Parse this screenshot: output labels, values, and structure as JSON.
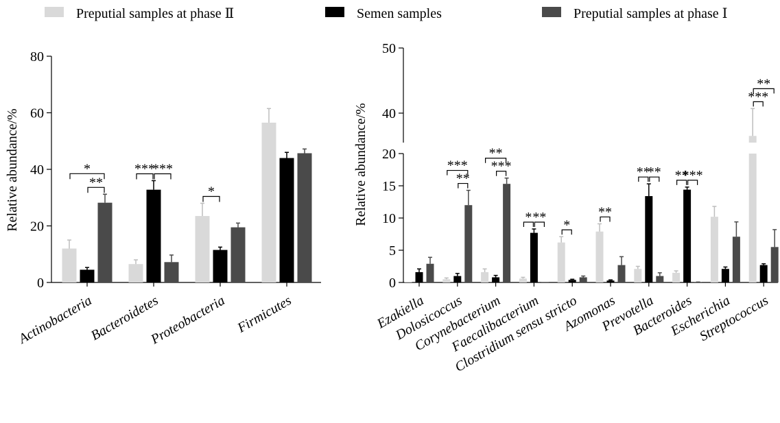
{
  "legend": [
    {
      "label": "Preputial samples at phase Ⅱ",
      "color": "#d9d9d9"
    },
    {
      "label": "Semen samples",
      "color": "#000000"
    },
    {
      "label": "Preputial samples at phase Ⅰ",
      "color": "#4a4a4a"
    }
  ],
  "colors": {
    "phase2": "#d9d9d9",
    "semen": "#000000",
    "phase1": "#4a4a4a",
    "error": "#bdbdbd"
  },
  "chart_data": [
    {
      "type": "bar",
      "ylabel": "Relative abundance/%",
      "ylim": [
        0,
        80
      ],
      "yticks": [
        "0",
        "20",
        "40",
        "60",
        "80"
      ],
      "grid": false,
      "categories": [
        "Actinobacteria",
        "Bacteroidetes",
        "Proteobacteria",
        "Firmicutes"
      ],
      "series": [
        {
          "name": "Preputial samples at phase Ⅱ",
          "values": [
            12,
            6.5,
            23.5,
            56.5
          ],
          "errors": [
            3,
            1.5,
            4.5,
            5
          ]
        },
        {
          "name": "Semen samples",
          "values": [
            4.5,
            32.8,
            11.5,
            44
          ],
          "errors": [
            0.8,
            3.2,
            1,
            2
          ]
        },
        {
          "name": "Preputial samples at phase Ⅰ",
          "values": [
            28.2,
            7.2,
            19.5,
            45.7
          ],
          "errors": [
            3,
            2.5,
            1.5,
            1.5
          ]
        }
      ],
      "significance": [
        {
          "category": 0,
          "from": 0,
          "to": 2,
          "label": "*",
          "level": 2
        },
        {
          "category": 0,
          "from": 1,
          "to": 2,
          "label": "**",
          "level": 1
        },
        {
          "category": 1,
          "from": 0,
          "to": 1,
          "label": "***",
          "level": 1
        },
        {
          "category": 1,
          "from": 1,
          "to": 2,
          "label": "***",
          "level": 1
        },
        {
          "category": 2,
          "from": 0,
          "to": 1,
          "label": "*",
          "level": 1
        }
      ]
    },
    {
      "type": "bar",
      "ylabel": "Relative abundance/%",
      "ylim": [
        0,
        50
      ],
      "axis_break": [
        20,
        35
      ],
      "yticks": [
        "0",
        "5",
        "10",
        "15",
        "20",
        "30",
        "40",
        "50"
      ],
      "grid": false,
      "categories": [
        "Ezakiella",
        "Dolosicoccus",
        "Corynebacterium",
        "Faecalibacterium",
        "Clostridium sensu stricto",
        "Azomonas",
        "Prevotella",
        "Bacteroides",
        "Escherichia",
        "Streptococcus"
      ],
      "series": [
        {
          "name": "Preputial samples at phase Ⅱ",
          "values": [
            0,
            0.5,
            1.6,
            0.6,
            6.2,
            7.9,
            2.1,
            1.5,
            10.2,
            36.5
          ],
          "errors": [
            0,
            0.2,
            0.5,
            0.2,
            0.9,
            1.2,
            0.4,
            0.3,
            1.6,
            4.2
          ]
        },
        {
          "name": "Semen samples",
          "values": [
            1.6,
            1.0,
            0.8,
            7.7,
            0.4,
            0.3,
            13.4,
            14.4,
            2.1,
            2.7
          ],
          "errors": [
            0.5,
            0.4,
            0.3,
            0.6,
            0.1,
            0.1,
            1.9,
            0.4,
            0.3,
            0.2
          ]
        },
        {
          "name": "Preputial samples at phase Ⅰ",
          "values": [
            2.9,
            12.0,
            15.3,
            0,
            0.8,
            2.7,
            1.0,
            0.05,
            7.1,
            5.5
          ],
          "errors": [
            1.0,
            2.3,
            0.9,
            0,
            0.2,
            1.3,
            0.5,
            0.02,
            2.3,
            2.7
          ]
        }
      ],
      "significance": [
        {
          "category": 1,
          "from": 0,
          "to": 2,
          "label": "***",
          "level": 2
        },
        {
          "category": 1,
          "from": 1,
          "to": 2,
          "label": "**",
          "level": 1
        },
        {
          "category": 2,
          "from": 0,
          "to": 2,
          "label": "**",
          "level": 2
        },
        {
          "category": 2,
          "from": 1,
          "to": 2,
          "label": "***",
          "level": 1
        },
        {
          "category": 3,
          "from": 0,
          "to": 1,
          "label": "*",
          "level": 1
        },
        {
          "category": 3,
          "from": 1,
          "to": 2,
          "label": "**",
          "level": 1
        },
        {
          "category": 4,
          "from": 0,
          "to": 1,
          "label": "*",
          "level": 1
        },
        {
          "category": 5,
          "from": 0,
          "to": 1,
          "label": "**",
          "level": 1
        },
        {
          "category": 6,
          "from": 0,
          "to": 1,
          "label": "**",
          "level": 1
        },
        {
          "category": 6,
          "from": 1,
          "to": 2,
          "label": "**",
          "level": 1
        },
        {
          "category": 7,
          "from": 0,
          "to": 1,
          "label": "**",
          "level": 1
        },
        {
          "category": 7,
          "from": 1,
          "to": 2,
          "label": "***",
          "level": 1
        },
        {
          "category": 9,
          "from": 0,
          "to": 1,
          "label": "***",
          "level": 1
        },
        {
          "category": 9,
          "from": 0,
          "to": 2,
          "label": "**",
          "level": 2
        }
      ]
    }
  ]
}
